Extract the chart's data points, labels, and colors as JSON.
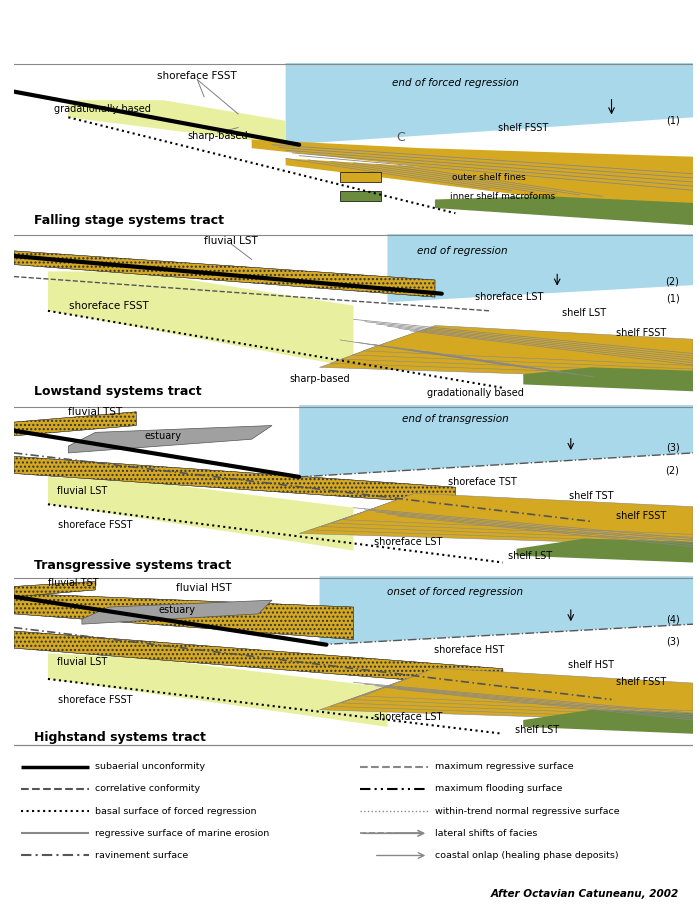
{
  "colors": {
    "sky_blue": "#A8D8EA",
    "light_yellow_green": "#E8F0A0",
    "golden_yellow": "#D4A820",
    "olive_green": "#6B8C3E",
    "estuary_gray": "#A0A0A0",
    "black": "#000000",
    "dark_gray": "#555555",
    "white": "#FFFFFF"
  },
  "panel_titles": [
    "Falling stage systems tract",
    "Lowstand systems tract",
    "Transgressive systems tract",
    "Highstand systems tract"
  ],
  "attribution": "After Octavian Catuneanu, 2002"
}
